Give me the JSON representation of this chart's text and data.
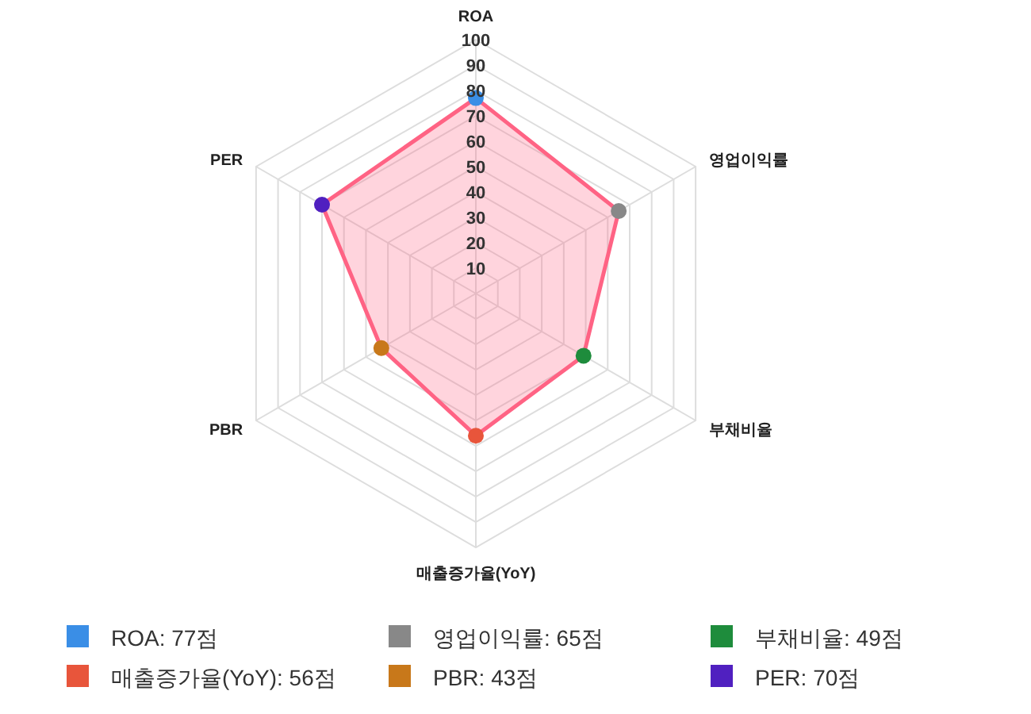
{
  "chart_data": {
    "type": "radar",
    "categories": [
      "ROA",
      "영업이익률",
      "부채비율",
      "매출증가율(YoY)",
      "PBR",
      "PER"
    ],
    "series": [
      {
        "color": "#ff6384",
        "values": [
          77,
          65,
          49,
          56,
          43,
          70
        ],
        "colors": [
          "#3a8ee6",
          "#888888",
          "#1e8c3c",
          "#e8553b",
          "#c8781a",
          "#5020c0"
        ]
      }
    ],
    "ylim": [
      0,
      100
    ],
    "yticks": [
      10,
      20,
      30,
      40,
      50,
      60,
      70,
      80,
      90,
      100
    ],
    "grid": true,
    "marker": "circle",
    "line_style": "solid",
    "annotations": [
      "ROA: 77점",
      "영업이익률: 65점",
      "부채비율: 49점",
      "매출증가율(YoY): 56점",
      "PBR: 43점",
      "PER: 70점"
    ]
  }
}
